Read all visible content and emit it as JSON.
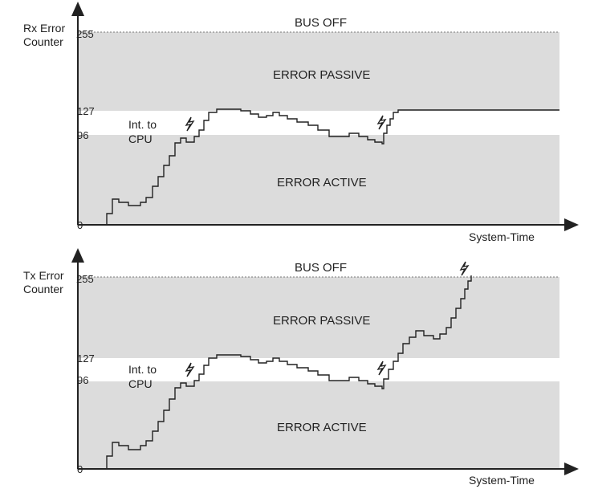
{
  "panels": [
    {
      "y_axis_label_line1": "Rx Error",
      "y_axis_label_line2": "Counter",
      "x_axis_label": "System-Time",
      "ticks": [
        "255",
        "127",
        "96",
        "0"
      ],
      "zone_bus_off": "BUS OFF",
      "zone_error_passive": "ERROR PASSIVE",
      "zone_error_active": "ERROR ACTIVE",
      "interrupt_line1": "Int. to",
      "interrupt_line2": "CPU"
    },
    {
      "y_axis_label_line1": "Tx Error",
      "y_axis_label_line2": "Counter",
      "x_axis_label": "System-Time",
      "ticks": [
        "255",
        "127",
        "96",
        "0"
      ],
      "zone_bus_off": "BUS OFF",
      "zone_error_passive": "ERROR PASSIVE",
      "zone_error_active": "ERROR ACTIVE",
      "interrupt_line1": "Int. to",
      "interrupt_line2": "CPU"
    }
  ],
  "colors": {
    "zone_fill": "#dcdcdc",
    "line": "#222222"
  }
}
